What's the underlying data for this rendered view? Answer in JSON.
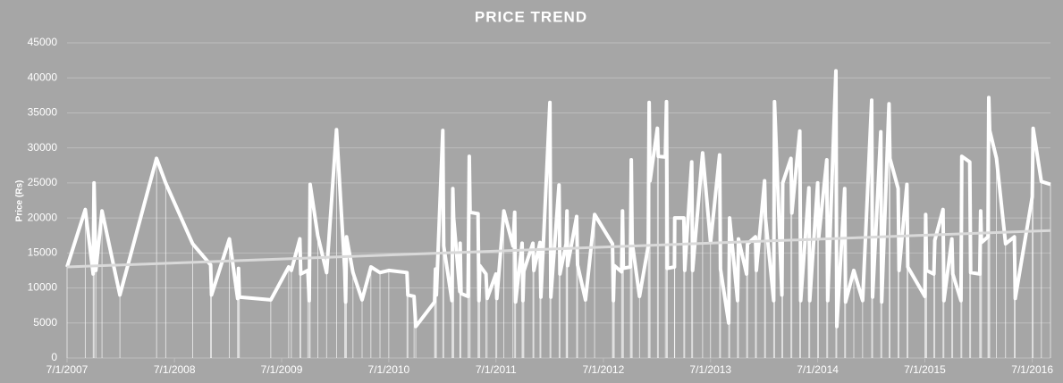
{
  "chart_data": {
    "type": "line",
    "title": "PRICE TREND",
    "y_label": "Price (Rs)",
    "x": [
      "7/1/2007",
      "9/1/2007",
      "9/28/2007",
      "10/1/2007",
      "10/7/2007",
      "10/28/2007",
      "12/28/2007",
      "5/1/2008",
      "6/1/2008",
      "9/1/2008",
      "11/1/2008",
      "11/4/2008",
      "1/4/2009",
      "2/1/2009",
      "2/4/2009",
      "2/7/2009",
      "5/25/2009",
      "7/25/2009",
      "8/3/2009",
      "9/1/2009",
      "9/4/2009",
      "9/28/2009",
      "10/3/2009",
      "10/6/2009",
      "11/1/2009",
      "12/1/2009",
      "1/4/2010",
      "2/1/2010",
      "2/4/2010",
      "2/7/2010",
      "3/1/2010",
      "4/1/2010",
      "5/1/2010",
      "6/1/2010",
      "7/1/2010",
      "9/1/2010",
      "9/4/2010",
      "9/25/2010",
      "10/1/2010",
      "12/4/2010",
      "12/7/2010",
      "12/10/2010",
      "1/1/2011",
      "1/4/2011",
      "2/1/2011",
      "2/4/2011",
      "2/7/2011",
      "2/28/2011",
      "3/1/2011",
      "3/4/2011",
      "3/28/2011",
      "4/1/2011",
      "4/4/2011",
      "5/1/2011",
      "5/4/2011",
      "5/7/2011",
      "5/28/2011",
      "6/1/2011",
      "7/1/2011",
      "7/4/2011",
      "7/28/2011",
      "8/28/2011",
      "9/3/2011",
      "9/6/2011",
      "9/28/2011",
      "10/1/2011",
      "10/4/2011",
      "11/4/2011",
      "11/7/2011",
      "11/28/2011",
      "12/1/2011",
      "1/1/2012",
      "1/4/2012",
      "2/1/2012",
      "2/4/2012",
      "2/25/2012",
      "2/28/2012",
      "3/1/2012",
      "4/1/2012",
      "4/4/2012",
      "5/1/2012",
      "6/1/2012",
      "8/1/2012",
      "8/4/2012",
      "8/7/2012",
      "9/1/2012",
      "9/4/2012",
      "9/7/2012",
      "10/1/2012",
      "10/4/2012",
      "10/7/2012",
      "11/1/2012",
      "12/1/2012",
      "12/4/2012",
      "12/7/2012",
      "1/1/2013",
      "1/4/2013",
      "1/28/2013",
      "2/1/2013",
      "2/4/2013",
      "2/28/2013",
      "3/1/2013",
      "4/1/2013",
      "4/4/2013",
      "4/28/2013",
      "5/1/2013",
      "6/4/2013",
      "7/1/2013",
      "8/1/2013",
      "8/4/2013",
      "9/1/2013",
      "9/4/2013",
      "10/1/2013",
      "10/4/2013",
      "11/1/2013",
      "11/4/2013",
      "12/1/2013",
      "12/4/2013",
      "1/1/2014",
      "1/4/2014",
      "2/1/2014",
      "2/4/2014",
      "3/1/2014",
      "3/4/2014",
      "4/1/2014",
      "4/4/2014",
      "5/1/2014",
      "5/4/2014",
      "6/1/2014",
      "6/4/2014",
      "7/1/2014",
      "7/4/2014",
      "8/1/2014",
      "8/4/2014",
      "9/1/2014",
      "9/4/2014",
      "10/1/2014",
      "10/4/2014",
      "11/1/2014",
      "12/1/2014",
      "1/1/2015",
      "1/4/2015",
      "2/1/2015",
      "2/4/2015",
      "3/1/2015",
      "3/4/2015",
      "4/1/2015",
      "4/4/2015",
      "5/1/2015",
      "5/4/2015",
      "7/1/2015",
      "7/4/2015",
      "7/7/2015",
      "8/1/2015",
      "8/4/2015",
      "9/1/2015",
      "9/4/2015",
      "10/1/2015",
      "10/4/2015",
      "11/1/2015",
      "11/4/2015",
      "12/1/2015",
      "12/4/2015",
      "1/4/2016",
      "1/7/2016",
      "1/10/2016",
      "2/1/2016",
      "2/4/2016",
      "2/7/2016",
      "3/1/2016",
      "4/1/2016",
      "5/1/2016",
      "5/4/2016",
      "7/1/2016",
      "7/4/2016",
      "8/1/2016",
      "9/1/2016"
    ],
    "series": [
      {
        "color": "#ffffff",
        "values": [
          13000,
          21200,
          12000,
          25000,
          12500,
          21000,
          9000,
          28500,
          25000,
          16300,
          13300,
          9000,
          17000,
          8500,
          12800,
          8700,
          8300,
          13000,
          12500,
          17000,
          12000,
          12500,
          8200,
          24800,
          17500,
          12200,
          32600,
          12500,
          8000,
          17300,
          12200,
          8300,
          13000,
          12200,
          12500,
          12200,
          9000,
          8800,
          4500,
          8000,
          12700,
          9000,
          32500,
          16000,
          8200,
          24200,
          20000,
          9500,
          16400,
          9200,
          8800,
          28800,
          20800,
          20600,
          8200,
          13200,
          12000,
          8500,
          12000,
          8500,
          21000,
          16000,
          20800,
          8000,
          16400,
          8200,
          12400,
          16400,
          12500,
          16500,
          8700,
          36500,
          8700,
          24700,
          12000,
          16300,
          21000,
          13200,
          20200,
          13300,
          8300,
          20500,
          16300,
          8200,
          13200,
          12300,
          21000,
          12800,
          13000,
          28300,
          16500,
          8800,
          16000,
          36500,
          25300,
          32800,
          28800,
          28700,
          36600,
          12800,
          13000,
          20000,
          20000,
          12500,
          28000,
          12500,
          29300,
          16500,
          29000,
          12700,
          5000,
          20000,
          8200,
          17000,
          12000,
          16300,
          17300,
          12500,
          25300,
          20000,
          8200,
          36600,
          9000,
          25000,
          28500,
          20700,
          32400,
          8200,
          24300,
          8200,
          25000,
          17000,
          28300,
          8200,
          41000,
          4500,
          24200,
          8000,
          12500,
          8200,
          36800,
          8700,
          32300,
          8000,
          36300,
          28500,
          24200,
          12500,
          24800,
          13000,
          8800,
          20500,
          12500,
          12000,
          16800,
          21200,
          8200,
          17000,
          12000,
          8200,
          28800,
          28000,
          12200,
          12000,
          21000,
          16500,
          17300,
          37200,
          32500,
          28500,
          16300,
          17300,
          8500,
          23000,
          32800,
          25200,
          24800
        ]
      }
    ],
    "trendline": {
      "color": "#d9d9d9",
      "values": [
        13000,
        18200
      ]
    },
    "xlim": [
      "7/1/2007",
      "9/1/2016"
    ],
    "xticks": [
      "7/1/2007",
      "7/1/2008",
      "7/1/2009",
      "7/1/2010",
      "7/1/2011",
      "7/1/2012",
      "7/1/2013",
      "7/1/2014",
      "7/1/2015",
      "7/1/2016"
    ],
    "ylim": [
      0,
      45000
    ],
    "yticks": [
      0,
      5000,
      10000,
      15000,
      20000,
      25000,
      30000,
      35000,
      40000,
      45000
    ],
    "grid": true,
    "grid_color": "#bdbdbd",
    "drop_lines": true
  }
}
